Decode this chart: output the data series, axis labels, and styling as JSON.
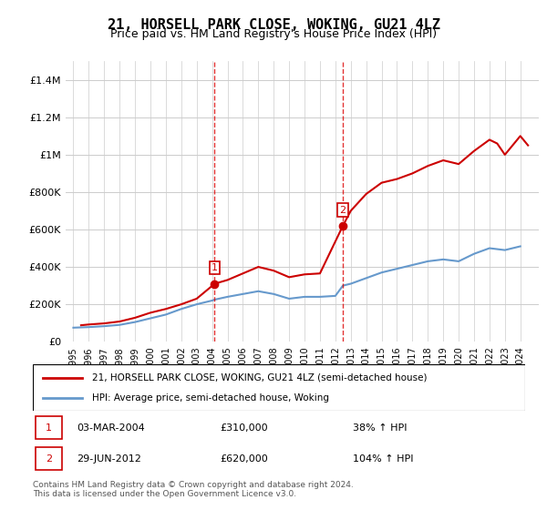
{
  "title": "21, HORSELL PARK CLOSE, WOKING, GU21 4LZ",
  "subtitle": "Price paid vs. HM Land Registry's House Price Index (HPI)",
  "legend_line1": "21, HORSELL PARK CLOSE, WOKING, GU21 4LZ (semi-detached house)",
  "legend_line2": "HPI: Average price, semi-detached house, Woking",
  "footnote": "Contains HM Land Registry data © Crown copyright and database right 2024.\nThis data is licensed under the Open Government Licence v3.0.",
  "sale1_label": "1",
  "sale1_date_str": "03-MAR-2004",
  "sale1_price_str": "£310,000",
  "sale1_hpi_str": "38% ↑ HPI",
  "sale1_x": 2004.17,
  "sale1_y": 310000,
  "sale2_label": "2",
  "sale2_date_str": "29-JUN-2012",
  "sale2_price_str": "£620,000",
  "sale2_hpi_str": "104% ↑ HPI",
  "sale2_x": 2012.49,
  "sale2_y": 620000,
  "ylim": [
    0,
    1500000
  ],
  "xlim": [
    1994.5,
    2025
  ],
  "red_color": "#cc0000",
  "blue_color": "#6699cc",
  "vline_color": "#dd0000",
  "background_color": "#ffffff",
  "hpi_years": [
    1995,
    1996,
    1997,
    1998,
    1999,
    2000,
    2001,
    2002,
    2003,
    2004,
    2004.17,
    2005,
    2006,
    2007,
    2008,
    2009,
    2010,
    2011,
    2012,
    2012.49,
    2013,
    2014,
    2015,
    2016,
    2017,
    2018,
    2019,
    2020,
    2021,
    2022,
    2023,
    2024
  ],
  "hpi_values": [
    75000,
    78000,
    83000,
    90000,
    105000,
    125000,
    145000,
    175000,
    200000,
    220000,
    225000,
    240000,
    255000,
    270000,
    255000,
    230000,
    240000,
    240000,
    245000,
    300000,
    310000,
    340000,
    370000,
    390000,
    410000,
    430000,
    440000,
    430000,
    470000,
    500000,
    490000,
    510000
  ],
  "price_years": [
    1995.5,
    1996,
    1997,
    1998,
    1999,
    2000,
    2001,
    2002,
    2003,
    2004.17,
    2005,
    2006,
    2007,
    2008,
    2009,
    2010,
    2011,
    2012.49,
    2013,
    2014,
    2015,
    2016,
    2017,
    2018,
    2019,
    2020,
    2021,
    2022,
    2022.5,
    2023,
    2023.5,
    2024,
    2024.5
  ],
  "price_values": [
    88000,
    92000,
    98000,
    108000,
    128000,
    155000,
    175000,
    200000,
    230000,
    310000,
    330000,
    365000,
    400000,
    380000,
    345000,
    360000,
    365000,
    620000,
    700000,
    790000,
    850000,
    870000,
    900000,
    940000,
    970000,
    950000,
    1020000,
    1080000,
    1060000,
    1000000,
    1050000,
    1100000,
    1050000
  ]
}
